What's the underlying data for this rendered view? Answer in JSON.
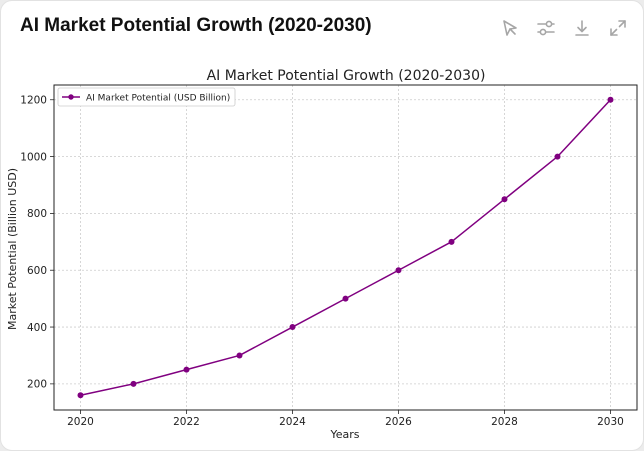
{
  "header": {
    "title": "AI Market Potential Growth (2020-2030)",
    "tools": [
      {
        "icon": "magic-wand-icon"
      },
      {
        "icon": "sliders-icon"
      },
      {
        "icon": "download-icon"
      },
      {
        "icon": "expand-icon"
      }
    ]
  },
  "colors": {
    "line": "#800080",
    "grid": "#cccccc",
    "axis": "#222222",
    "icon": "#a6a6a6"
  },
  "chart_data": {
    "type": "line",
    "title": "AI Market Potential Growth (2020-2030)",
    "xlabel": "Years",
    "ylabel": "Market Potential (Billion USD)",
    "x": [
      2020,
      2021,
      2022,
      2023,
      2024,
      2025,
      2026,
      2027,
      2028,
      2029,
      2030
    ],
    "series": [
      {
        "name": "AI Market Potential (USD Billion)",
        "values": [
          160,
          200,
          250,
          300,
          400,
          500,
          600,
          700,
          850,
          1000,
          1200
        ]
      }
    ],
    "xticks": [
      "2020",
      "2022",
      "2024",
      "2026",
      "2028",
      "2030"
    ],
    "yticks": [
      "200",
      "400",
      "600",
      "800",
      "1000",
      "1200"
    ],
    "xlim": [
      2019.5,
      2030.5
    ],
    "ylim": [
      108,
      1252
    ],
    "grid": true,
    "legend": "top-left"
  }
}
